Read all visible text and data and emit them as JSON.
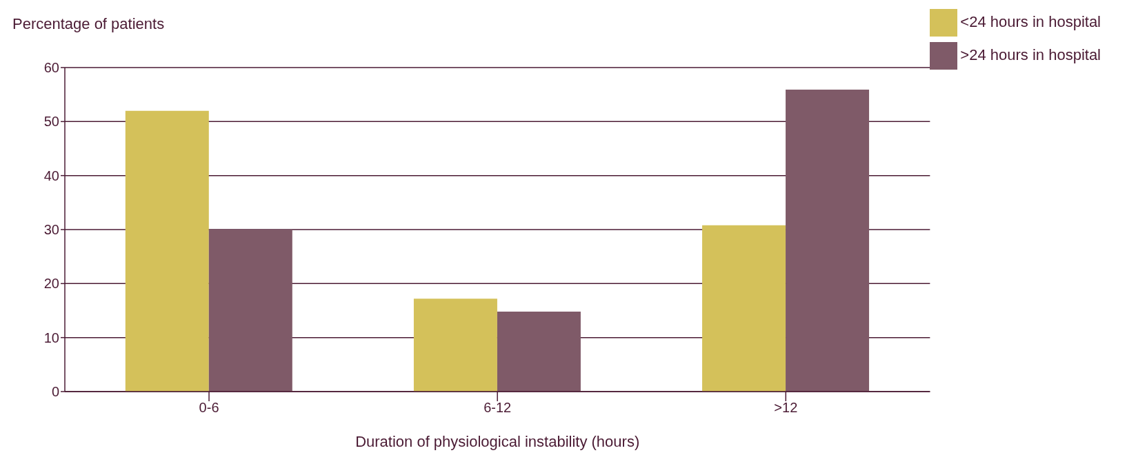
{
  "chart_data": {
    "type": "bar",
    "ylabel": "Percentage of patients",
    "xlabel": "Duration of physiological instability (hours)",
    "categories": [
      "0-6",
      "6-12",
      ">12"
    ],
    "series": [
      {
        "name": "<24 hours in hospital",
        "color": "#d4c15a",
        "values": [
          52,
          17.2,
          30.8
        ]
      },
      {
        "name": ">24 hours in hospital",
        "color": "#7f5a68",
        "values": [
          30,
          14.8,
          55.9
        ]
      }
    ],
    "ylim": [
      0,
      60
    ],
    "yticks": [
      0,
      10,
      20,
      30,
      40,
      50,
      60
    ],
    "grid": "y",
    "legend": "top right"
  }
}
